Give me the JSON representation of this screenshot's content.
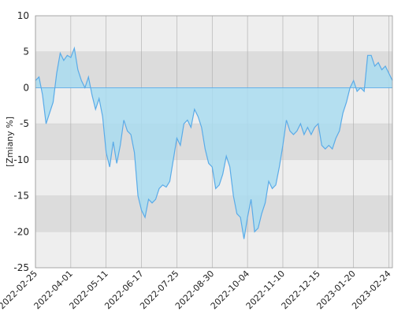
{
  "chart_data": {
    "type": "area",
    "y_label": "[Zmiany %]",
    "categories": [
      "2022-02-25",
      null,
      null,
      null,
      null,
      null,
      null,
      null,
      null,
      null,
      "2022-04-01",
      null,
      null,
      null,
      null,
      null,
      null,
      null,
      null,
      null,
      "2022-05-11",
      null,
      null,
      null,
      null,
      null,
      null,
      null,
      null,
      null,
      "2022-06-17",
      null,
      null,
      null,
      null,
      null,
      null,
      null,
      null,
      null,
      "2022-07-25",
      null,
      null,
      null,
      null,
      null,
      null,
      null,
      null,
      null,
      "2022-08-30",
      null,
      null,
      null,
      null,
      null,
      null,
      null,
      null,
      null,
      "2022-10-04",
      null,
      null,
      null,
      null,
      null,
      null,
      null,
      null,
      null,
      "2022-11-10",
      null,
      null,
      null,
      null,
      null,
      null,
      null,
      null,
      null,
      "2022-12-15",
      null,
      null,
      null,
      null,
      null,
      null,
      null,
      null,
      null,
      "2023-01-20",
      null,
      null,
      null,
      null,
      null,
      null,
      null,
      null,
      null,
      "2023-02-24",
      null
    ],
    "values": [
      1,
      1.5,
      -1,
      -5,
      -3.5,
      -2,
      2,
      4.8,
      3.8,
      4.5,
      4.2,
      5.5,
      2.5,
      1,
      0,
      1.5,
      -1,
      -3,
      -1.5,
      -4,
      -9,
      -11,
      -7.5,
      -10.5,
      -8,
      -4.5,
      -6,
      -6.5,
      -9,
      -15,
      -17,
      -18,
      -15.5,
      -16,
      -15.5,
      -14,
      -13.5,
      -13.8,
      -13,
      -10,
      -7,
      -8,
      -5,
      -4.5,
      -5.5,
      -3,
      -4,
      -5.5,
      -8.5,
      -10.5,
      -11,
      -14,
      -13.5,
      -12,
      -9.5,
      -11,
      -15,
      -17.5,
      -18,
      -21,
      -18,
      -15.5,
      -20,
      -19.5,
      -17.5,
      -16,
      -13,
      -14,
      -13.5,
      -11,
      -8,
      -4.5,
      -6,
      -6.5,
      -6,
      -5,
      -6.5,
      -5.5,
      -6.5,
      -5.5,
      -5,
      -8,
      -8.5,
      -8,
      -8.5,
      -7,
      -6,
      -3.5,
      -2,
      0,
      1,
      -0.5,
      0,
      -0.5,
      4.5,
      4.5,
      3,
      3.5,
      2.5,
      3,
      2,
      1
    ],
    "color": "#5aabe8",
    "fill": "#a9dcf0",
    "ylim": [
      -25,
      10
    ],
    "yticks": [
      -25,
      -20,
      -15,
      -10,
      -5,
      0,
      5,
      10
    ],
    "grid": true
  }
}
